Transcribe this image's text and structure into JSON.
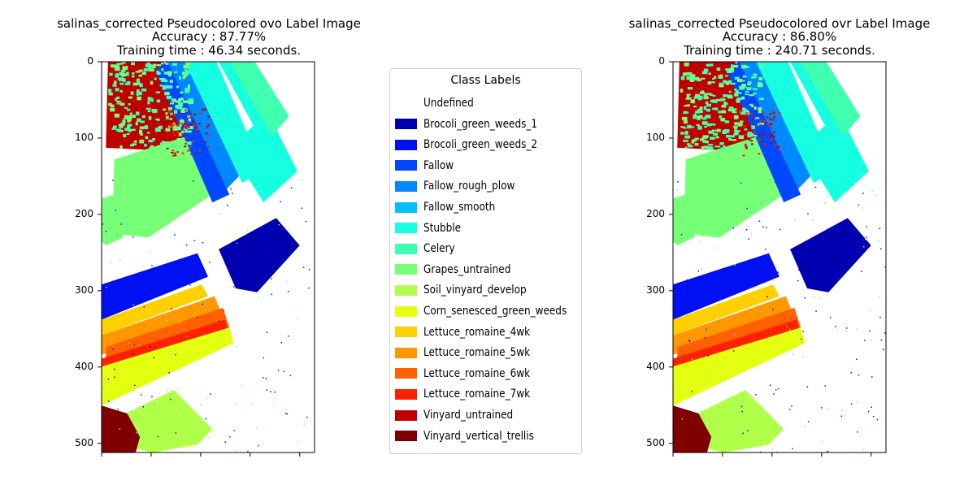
{
  "chart_data": [
    {
      "type": "heatmap",
      "title_lines": [
        "salinas_corrected Pseudocolored ovo Label Image",
        "Accuracy : 87.77%",
        "Training time : 46.34 seconds."
      ],
      "y_ticks": [
        0,
        100,
        200,
        300,
        400,
        500
      ],
      "ylim": [
        0,
        512
      ]
    },
    {
      "type": "heatmap",
      "title_lines": [
        "salinas_corrected Pseudocolored ovr Label Image",
        "Accuracy : 86.80%",
        "Training time : 240.71 seconds."
      ],
      "y_ticks": [
        0,
        100,
        200,
        300,
        400,
        500
      ],
      "ylim": [
        0,
        512
      ]
    }
  ],
  "legend": {
    "title": "Class Labels",
    "items": [
      {
        "label": "Undefined",
        "color": "#ffffff"
      },
      {
        "label": "Brocoli_green_weeds_1",
        "color": "#0000b0"
      },
      {
        "label": "Brocoli_green_weeds_2",
        "color": "#0010f0"
      },
      {
        "label": "Fallow",
        "color": "#0048ff"
      },
      {
        "label": "Fallow_rough_plow",
        "color": "#0088ff"
      },
      {
        "label": "Fallow_smooth",
        "color": "#00c0ff"
      },
      {
        "label": "Stubble",
        "color": "#16ffe0"
      },
      {
        "label": "Celery",
        "color": "#40ffb0"
      },
      {
        "label": "Grapes_untrained",
        "color": "#78ff78"
      },
      {
        "label": "Soil_vinyard_develop",
        "color": "#b0ff48"
      },
      {
        "label": "Corn_senesced_green_weeds",
        "color": "#e4ff10"
      },
      {
        "label": "Lettuce_romaine_4wk",
        "color": "#ffd000"
      },
      {
        "label": "Lettuce_romaine_5wk",
        "color": "#ff9800"
      },
      {
        "label": "Lettuce_romaine_6wk",
        "color": "#ff6000"
      },
      {
        "label": "Lettuce_romaine_7wk",
        "color": "#ff2000"
      },
      {
        "label": "Vinyard_untrained",
        "color": "#c00000"
      },
      {
        "label": "Vinyard_vertical_trellis",
        "color": "#800000"
      }
    ]
  }
}
